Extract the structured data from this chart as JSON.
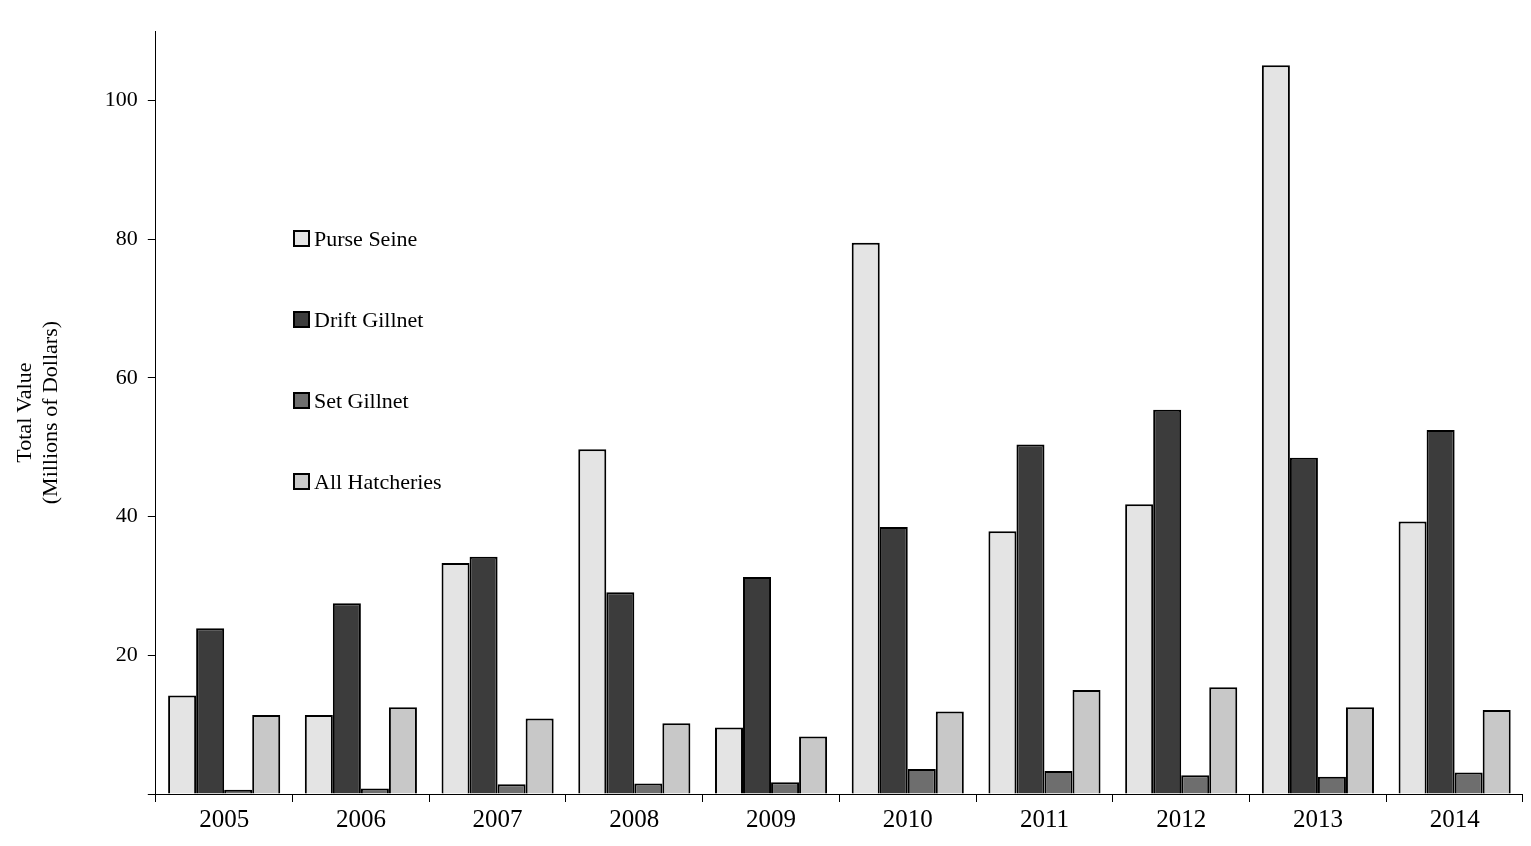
{
  "chart_data": {
    "type": "bar",
    "ylabel": "Total Value\n(Millions of Dollars)",
    "categories": [
      "2005",
      "2006",
      "2007",
      "2008",
      "2009",
      "2010",
      "2011",
      "2012",
      "2013",
      "2014"
    ],
    "series": [
      {
        "name": "Purse Seine",
        "color": "#e4e4e4",
        "values": [
          14.2,
          11.4,
          33.3,
          49.7,
          9.6,
          79.5,
          37.9,
          41.8,
          105.1,
          39.3
        ]
      },
      {
        "name": "Drift Gillnet",
        "color": "#3c3c3c",
        "values": [
          23.9,
          27.5,
          34.2,
          29.1,
          31.3,
          38.5,
          50.4,
          55.4,
          48.5,
          52.5
        ]
      },
      {
        "name": "Set Gillnet",
        "color": "#6e6e6e",
        "values": [
          0.6,
          0.8,
          1.4,
          1.5,
          1.7,
          3.6,
          3.3,
          2.7,
          2.5,
          3.1
        ]
      },
      {
        "name": "All Hatcheries",
        "color": "#c8c8c8",
        "values": [
          11.4,
          12.5,
          10.9,
          10.2,
          8.3,
          11.9,
          15.0,
          15.4,
          12.5,
          12.1
        ]
      }
    ],
    "ylim": [
      0,
      110
    ],
    "yticks": [
      {
        "value": 0,
        "label": null
      },
      20,
      40,
      60,
      80,
      100
    ],
    "grid": false,
    "legend": "left"
  }
}
